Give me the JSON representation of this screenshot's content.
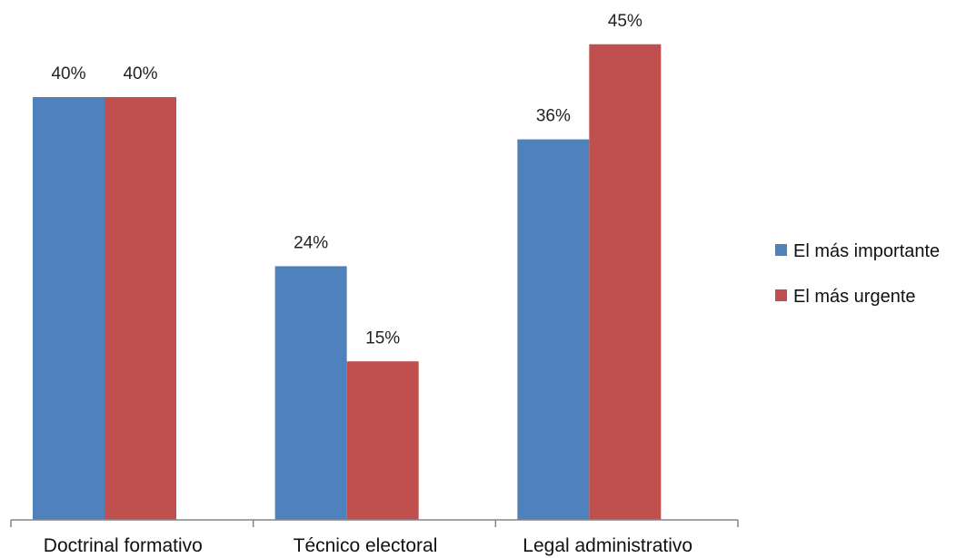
{
  "chart_data": {
    "type": "bar",
    "categories": [
      "Doctrinal formativo",
      "Técnico electoral",
      "Legal administrativo"
    ],
    "series": [
      {
        "name": "El más importante",
        "color": "#4f81bd",
        "values": [
          40,
          24,
          36
        ],
        "labels": [
          "40%",
          "24%",
          "36%"
        ]
      },
      {
        "name": "El más urgente",
        "color": "#c0504d",
        "values": [
          40,
          15,
          45
        ],
        "labels": [
          "40%",
          "15%",
          "45%"
        ]
      }
    ],
    "ylim": [
      0,
      50
    ],
    "grid": false,
    "legend_position": "right"
  }
}
